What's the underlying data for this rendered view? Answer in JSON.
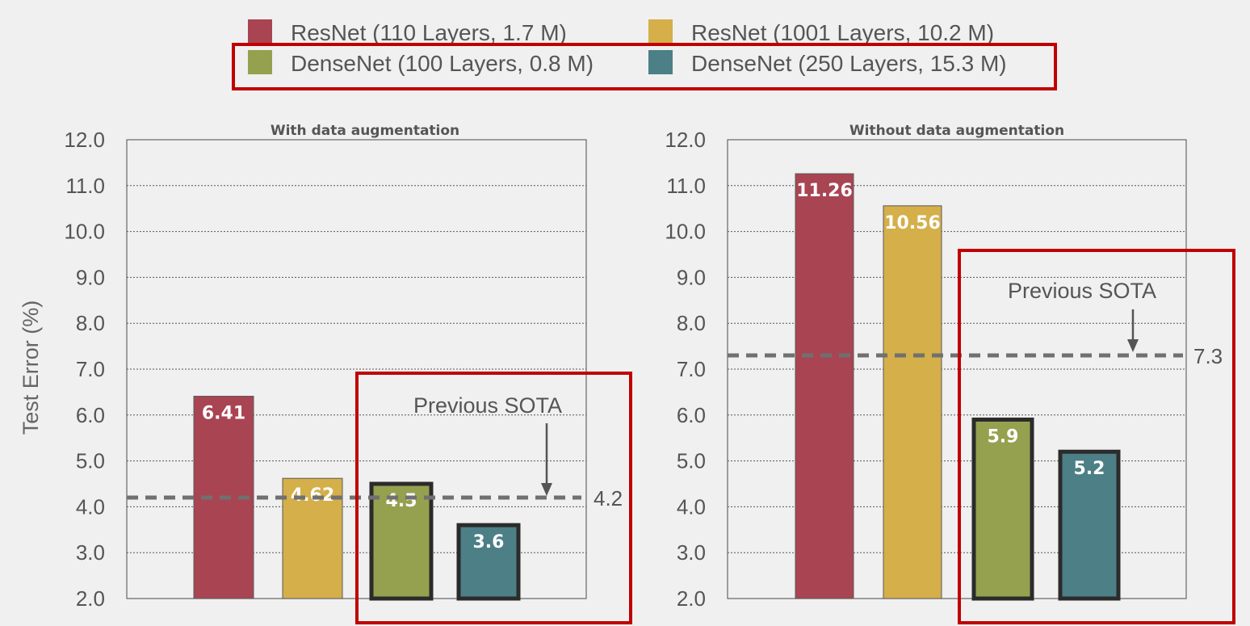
{
  "colors": {
    "resnet110": "#a94452",
    "resnet1001": "#d4af4a",
    "densenet100": "#95a14e",
    "densenet250": "#4c7f86",
    "highlight": "#c00000",
    "grid": "#555555",
    "sota_line": "#707070"
  },
  "legend": [
    {
      "label": "ResNet (110 Layers, 1.7 M)",
      "color_key": "resnet110"
    },
    {
      "label": "ResNet (1001 Layers, 10.2 M)",
      "color_key": "resnet1001"
    },
    {
      "label": "DenseNet (100 Layers, 0.8 M)",
      "color_key": "densenet100"
    },
    {
      "label": "DenseNet (250 Layers, 15.3 M)",
      "color_key": "densenet250"
    }
  ],
  "chart_data": [
    {
      "type": "bar",
      "title": "With data augmentation",
      "ylabel": "Test Error (%)",
      "ylim": [
        2.0,
        12.0
      ],
      "yticks": [
        "2.0",
        "3.0",
        "4.0",
        "5.0",
        "6.0",
        "7.0",
        "8.0",
        "9.0",
        "10.0",
        "11.0",
        "12.0"
      ],
      "categories": [
        "ResNet (110 Layers, 1.7 M)",
        "ResNet (1001 Layers, 10.2 M)",
        "DenseNet (100 Layers, 0.8 M)",
        "DenseNet (250 Layers, 15.3 M)"
      ],
      "values": [
        6.41,
        4.62,
        4.5,
        3.6
      ],
      "value_labels": [
        "6.41",
        "4.62",
        "4.5",
        "3.6"
      ],
      "previous_sota": {
        "label": "Previous SOTA",
        "value": 4.2,
        "value_label": "4.2"
      }
    },
    {
      "type": "bar",
      "title": "Without data augmentation",
      "ylabel": "",
      "ylim": [
        2.0,
        12.0
      ],
      "yticks": [
        "2.0",
        "3.0",
        "4.0",
        "5.0",
        "6.0",
        "7.0",
        "8.0",
        "9.0",
        "10.0",
        "11.0",
        "12.0"
      ],
      "categories": [
        "ResNet (110 Layers, 1.7 M)",
        "ResNet (1001 Layers, 10.2 M)",
        "DenseNet (100 Layers, 0.8 M)",
        "DenseNet (250 Layers, 15.3 M)"
      ],
      "values": [
        11.26,
        10.56,
        5.9,
        5.2
      ],
      "value_labels": [
        "11.26",
        "10.56",
        "5.9",
        "5.2"
      ],
      "previous_sota": {
        "label": "Previous SOTA",
        "value": 7.3,
        "value_label": "7.3"
      }
    }
  ]
}
